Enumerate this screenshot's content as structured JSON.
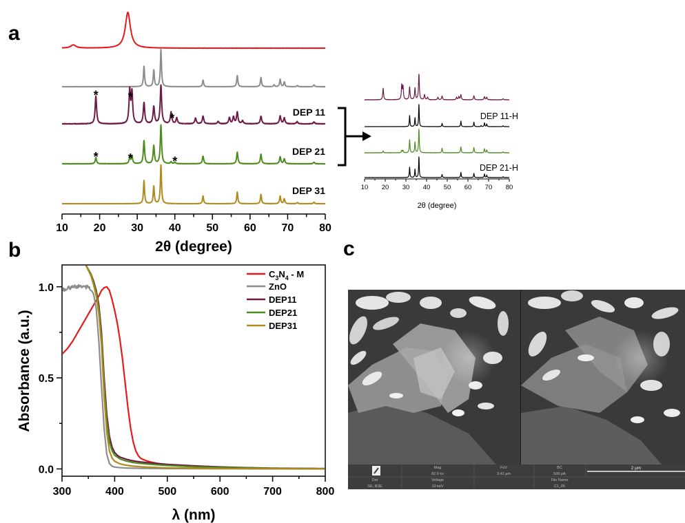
{
  "panels": {
    "a": "a",
    "b": "b",
    "c": "c"
  },
  "chart_data": [
    {
      "id": "xrd-main",
      "type": "line",
      "panel": "a",
      "xlabel": "2θ (degree)",
      "ylabel": "",
      "xlim": [
        10,
        80
      ],
      "xticks": [
        10,
        20,
        30,
        40,
        50,
        60,
        70,
        80
      ],
      "y_axis_visible": false,
      "grid": false,
      "series": [
        {
          "name": "",
          "color": "#e41a1c",
          "peaks": [
            [
              13,
              0.09
            ],
            [
              27.5,
              1.0
            ]
          ],
          "width": 1.0,
          "noise": 0.006
        },
        {
          "name": "",
          "color": "#8c8c8c",
          "peaks": [
            [
              31.8,
              0.55
            ],
            [
              34.4,
              0.45
            ],
            [
              36.3,
              1.0
            ],
            [
              47.5,
              0.18
            ],
            [
              56.6,
              0.3
            ],
            [
              62.9,
              0.25
            ],
            [
              66.4,
              0.05
            ],
            [
              68.0,
              0.2
            ],
            [
              69.1,
              0.13
            ],
            [
              72.6,
              0.03
            ],
            [
              77.0,
              0.05
            ]
          ],
          "width": 0.22,
          "noise": 0.006
        },
        {
          "name": "DEP 11",
          "color": "#6e1a46",
          "peaks": [
            [
              19.0,
              0.72
            ],
            [
              28.0,
              0.85
            ],
            [
              28.6,
              0.8
            ],
            [
              31.8,
              0.55
            ],
            [
              34.4,
              0.45
            ],
            [
              36.3,
              1.0
            ],
            [
              39.0,
              0.3
            ],
            [
              40.5,
              0.15
            ],
            [
              45.5,
              0.15
            ],
            [
              47.5,
              0.2
            ],
            [
              51.5,
              0.06
            ],
            [
              54.5,
              0.16
            ],
            [
              55.6,
              0.18
            ],
            [
              56.6,
              0.3
            ],
            [
              58.0,
              0.08
            ],
            [
              62.9,
              0.2
            ],
            [
              68.0,
              0.2
            ],
            [
              69.1,
              0.15
            ],
            [
              72.5,
              0.06
            ],
            [
              77.0,
              0.05
            ]
          ],
          "width": 0.28,
          "noise": 0.012
        },
        {
          "name": "DEP 21",
          "color": "#4c8b1e",
          "peaks": [
            [
              19.0,
              0.16
            ],
            [
              28.0,
              0.16
            ],
            [
              28.6,
              0.2
            ],
            [
              31.8,
              0.6
            ],
            [
              34.4,
              0.47
            ],
            [
              36.3,
              1.0
            ],
            [
              39.0,
              0.05
            ],
            [
              40.0,
              0.04
            ],
            [
              47.5,
              0.2
            ],
            [
              56.6,
              0.3
            ],
            [
              62.9,
              0.25
            ],
            [
              68.0,
              0.18
            ],
            [
              69.1,
              0.13
            ],
            [
              77.0,
              0.04
            ]
          ],
          "width": 0.25,
          "noise": 0.008
        },
        {
          "name": "DEP 31",
          "color": "#b08a1e",
          "peaks": [
            [
              31.8,
              0.6
            ],
            [
              34.4,
              0.45
            ],
            [
              36.3,
              1.0
            ],
            [
              47.5,
              0.2
            ],
            [
              56.6,
              0.3
            ],
            [
              62.9,
              0.24
            ],
            [
              68.0,
              0.2
            ],
            [
              69.1,
              0.13
            ],
            [
              72.6,
              0.03
            ],
            [
              77.0,
              0.04
            ]
          ],
          "width": 0.22,
          "noise": 0.006
        }
      ],
      "annotations": [
        {
          "text": "*",
          "x": 19.0,
          "series": 2
        },
        {
          "text": "*",
          "x": 28.2,
          "series": 2
        },
        {
          "text": "*",
          "x": 39.3,
          "series": 2
        },
        {
          "text": "*",
          "x": 19.0,
          "series": 3
        },
        {
          "text": "*",
          "x": 28.2,
          "series": 3
        },
        {
          "text": "*",
          "x": 40.0,
          "series": 3
        }
      ]
    },
    {
      "id": "xrd-inset",
      "type": "line",
      "panel": "a",
      "xlabel": "2θ (degree)",
      "xlim": [
        10,
        80
      ],
      "xticks": [
        10,
        20,
        30,
        40,
        50,
        60,
        70,
        80
      ],
      "grid": false,
      "series": [
        {
          "name": "",
          "color": "#6e1a46",
          "peaks": [
            [
              19.0,
              0.45
            ],
            [
              28.0,
              0.55
            ],
            [
              28.6,
              0.5
            ],
            [
              31.8,
              0.5
            ],
            [
              34.4,
              0.45
            ],
            [
              36.3,
              1.0
            ],
            [
              39.0,
              0.2
            ],
            [
              40.5,
              0.1
            ],
            [
              45.5,
              0.1
            ],
            [
              47.5,
              0.15
            ],
            [
              54.5,
              0.1
            ],
            [
              55.6,
              0.12
            ],
            [
              56.6,
              0.2
            ],
            [
              62.9,
              0.16
            ],
            [
              68.0,
              0.12
            ],
            [
              69.1,
              0.1
            ],
            [
              77.0,
              0.04
            ]
          ],
          "width": 0.3,
          "noise": 0.01
        },
        {
          "name": "DEP 11-H",
          "color": "#000000",
          "peaks": [
            [
              31.8,
              0.5
            ],
            [
              34.4,
              0.4
            ],
            [
              36.3,
              1.0
            ],
            [
              47.5,
              0.15
            ],
            [
              56.6,
              0.25
            ],
            [
              62.9,
              0.2
            ],
            [
              66.4,
              0.05
            ],
            [
              68.0,
              0.17
            ],
            [
              69.1,
              0.12
            ],
            [
              77.0,
              0.04
            ]
          ],
          "width": 0.22,
          "noise": 0.005
        },
        {
          "name": "",
          "color": "#4c8b1e",
          "peaks": [
            [
              19.0,
              0.08
            ],
            [
              28.0,
              0.1
            ],
            [
              28.6,
              0.1
            ],
            [
              31.8,
              0.55
            ],
            [
              34.4,
              0.45
            ],
            [
              36.3,
              1.0
            ],
            [
              47.5,
              0.2
            ],
            [
              56.6,
              0.25
            ],
            [
              62.9,
              0.22
            ],
            [
              68.0,
              0.17
            ],
            [
              69.1,
              0.12
            ],
            [
              77.0,
              0.04
            ]
          ],
          "width": 0.25,
          "noise": 0.01
        },
        {
          "name": "DEP 21-H",
          "color": "#000000",
          "peaks": [
            [
              31.8,
              0.5
            ],
            [
              34.4,
              0.4
            ],
            [
              36.3,
              1.0
            ],
            [
              47.5,
              0.15
            ],
            [
              56.6,
              0.25
            ],
            [
              62.9,
              0.2
            ],
            [
              68.0,
              0.17
            ],
            [
              69.1,
              0.12
            ],
            [
              77.0,
              0.04
            ]
          ],
          "width": 0.22,
          "noise": 0.005
        }
      ]
    },
    {
      "id": "uv-vis",
      "type": "line",
      "panel": "b",
      "xlabel": "λ (nm)",
      "ylabel": "Absorbance (a.u.)",
      "xlim": [
        300,
        800
      ],
      "ylim": [
        -0.04,
        1.12
      ],
      "xticks": [
        300,
        400,
        500,
        600,
        700,
        800
      ],
      "yticks": [
        0.0,
        0.5,
        1.0
      ],
      "ytick_labels": [
        "0.0",
        "0.5",
        "1.0"
      ],
      "legend_position": "top-right",
      "grid": false,
      "series": [
        {
          "name": "C3N4 - M",
          "name_main": "C",
          "name_sub1": "3",
          "name_mid": "N",
          "name_sub2": "4",
          "name_tail": " - M",
          "color": "#e41a1c",
          "x": [
            300,
            310,
            320,
            330,
            340,
            350,
            360,
            370,
            375,
            380,
            385,
            390,
            395,
            400,
            405,
            410,
            415,
            420,
            425,
            430,
            435,
            440,
            445,
            450,
            460,
            470,
            480,
            500,
            550,
            600,
            650,
            700,
            800
          ],
          "y": [
            0.63,
            0.66,
            0.7,
            0.75,
            0.8,
            0.85,
            0.9,
            0.95,
            0.98,
            0.995,
            1.0,
            0.98,
            0.93,
            0.87,
            0.8,
            0.71,
            0.6,
            0.47,
            0.34,
            0.23,
            0.15,
            0.1,
            0.072,
            0.057,
            0.045,
            0.037,
            0.031,
            0.023,
            0.012,
            0.006,
            0.003,
            0.002,
            0.001
          ]
        },
        {
          "name": "ZnO",
          "color": "#8c8c8c",
          "x": [
            300,
            310,
            320,
            330,
            340,
            350,
            355,
            360,
            365,
            370,
            375,
            380,
            385,
            390,
            395,
            400,
            410,
            420,
            450,
            500,
            600,
            800
          ],
          "y": [
            0.98,
            0.99,
            1.0,
            1.0,
            1.0,
            1.0,
            0.99,
            0.96,
            0.88,
            0.7,
            0.45,
            0.22,
            0.08,
            0.03,
            0.015,
            0.01,
            0.007,
            0.005,
            0.003,
            0.002,
            0.001,
            0.0
          ]
        },
        {
          "name": "DEP11",
          "color": "#6e1a46",
          "x": [
            345,
            355,
            360,
            365,
            370,
            375,
            380,
            385,
            390,
            395,
            400,
            405,
            410,
            420,
            430,
            440,
            450,
            470,
            500,
            550,
            600,
            650,
            700,
            800
          ],
          "y": [
            1.12,
            1.07,
            1.03,
            0.98,
            0.9,
            0.75,
            0.5,
            0.3,
            0.18,
            0.12,
            0.09,
            0.075,
            0.065,
            0.055,
            0.047,
            0.042,
            0.038,
            0.032,
            0.025,
            0.017,
            0.011,
            0.007,
            0.004,
            0.002
          ]
        },
        {
          "name": "DEP21",
          "color": "#4c8b1e",
          "x": [
            345,
            355,
            360,
            365,
            370,
            375,
            380,
            385,
            390,
            395,
            400,
            410,
            420,
            430,
            440,
            450,
            470,
            500,
            550,
            600,
            700,
            800
          ],
          "y": [
            1.12,
            1.07,
            1.02,
            0.97,
            0.88,
            0.72,
            0.46,
            0.26,
            0.15,
            0.1,
            0.075,
            0.055,
            0.045,
            0.038,
            0.033,
            0.03,
            0.025,
            0.019,
            0.012,
            0.008,
            0.003,
            0.001
          ]
        },
        {
          "name": "DEP31",
          "color": "#b08a1e",
          "x": [
            345,
            355,
            360,
            365,
            370,
            375,
            380,
            385,
            390,
            395,
            400,
            410,
            420,
            430,
            440,
            450,
            470,
            500,
            550,
            600,
            700,
            800
          ],
          "y": [
            1.12,
            1.06,
            1.01,
            0.95,
            0.85,
            0.68,
            0.4,
            0.2,
            0.1,
            0.06,
            0.042,
            0.028,
            0.021,
            0.017,
            0.014,
            0.012,
            0.009,
            0.006,
            0.004,
            0.002,
            0.001,
            0.0
          ]
        }
      ]
    }
  ],
  "sem": {
    "info_bar": {
      "mag_label": "Mag",
      "mag_value": "82.9 kx",
      "fov_label": "FoV",
      "fov_value": "3.42 μm",
      "bc_label": "BC",
      "bc_value": "500 pA",
      "scale_label": "2 μm",
      "det_label": "Det",
      "det_value": "SE, BSE",
      "voltage_label": "Voltage",
      "voltage_value": "10 keV",
      "file_label": "File Name",
      "file_value": "C1_05"
    }
  }
}
